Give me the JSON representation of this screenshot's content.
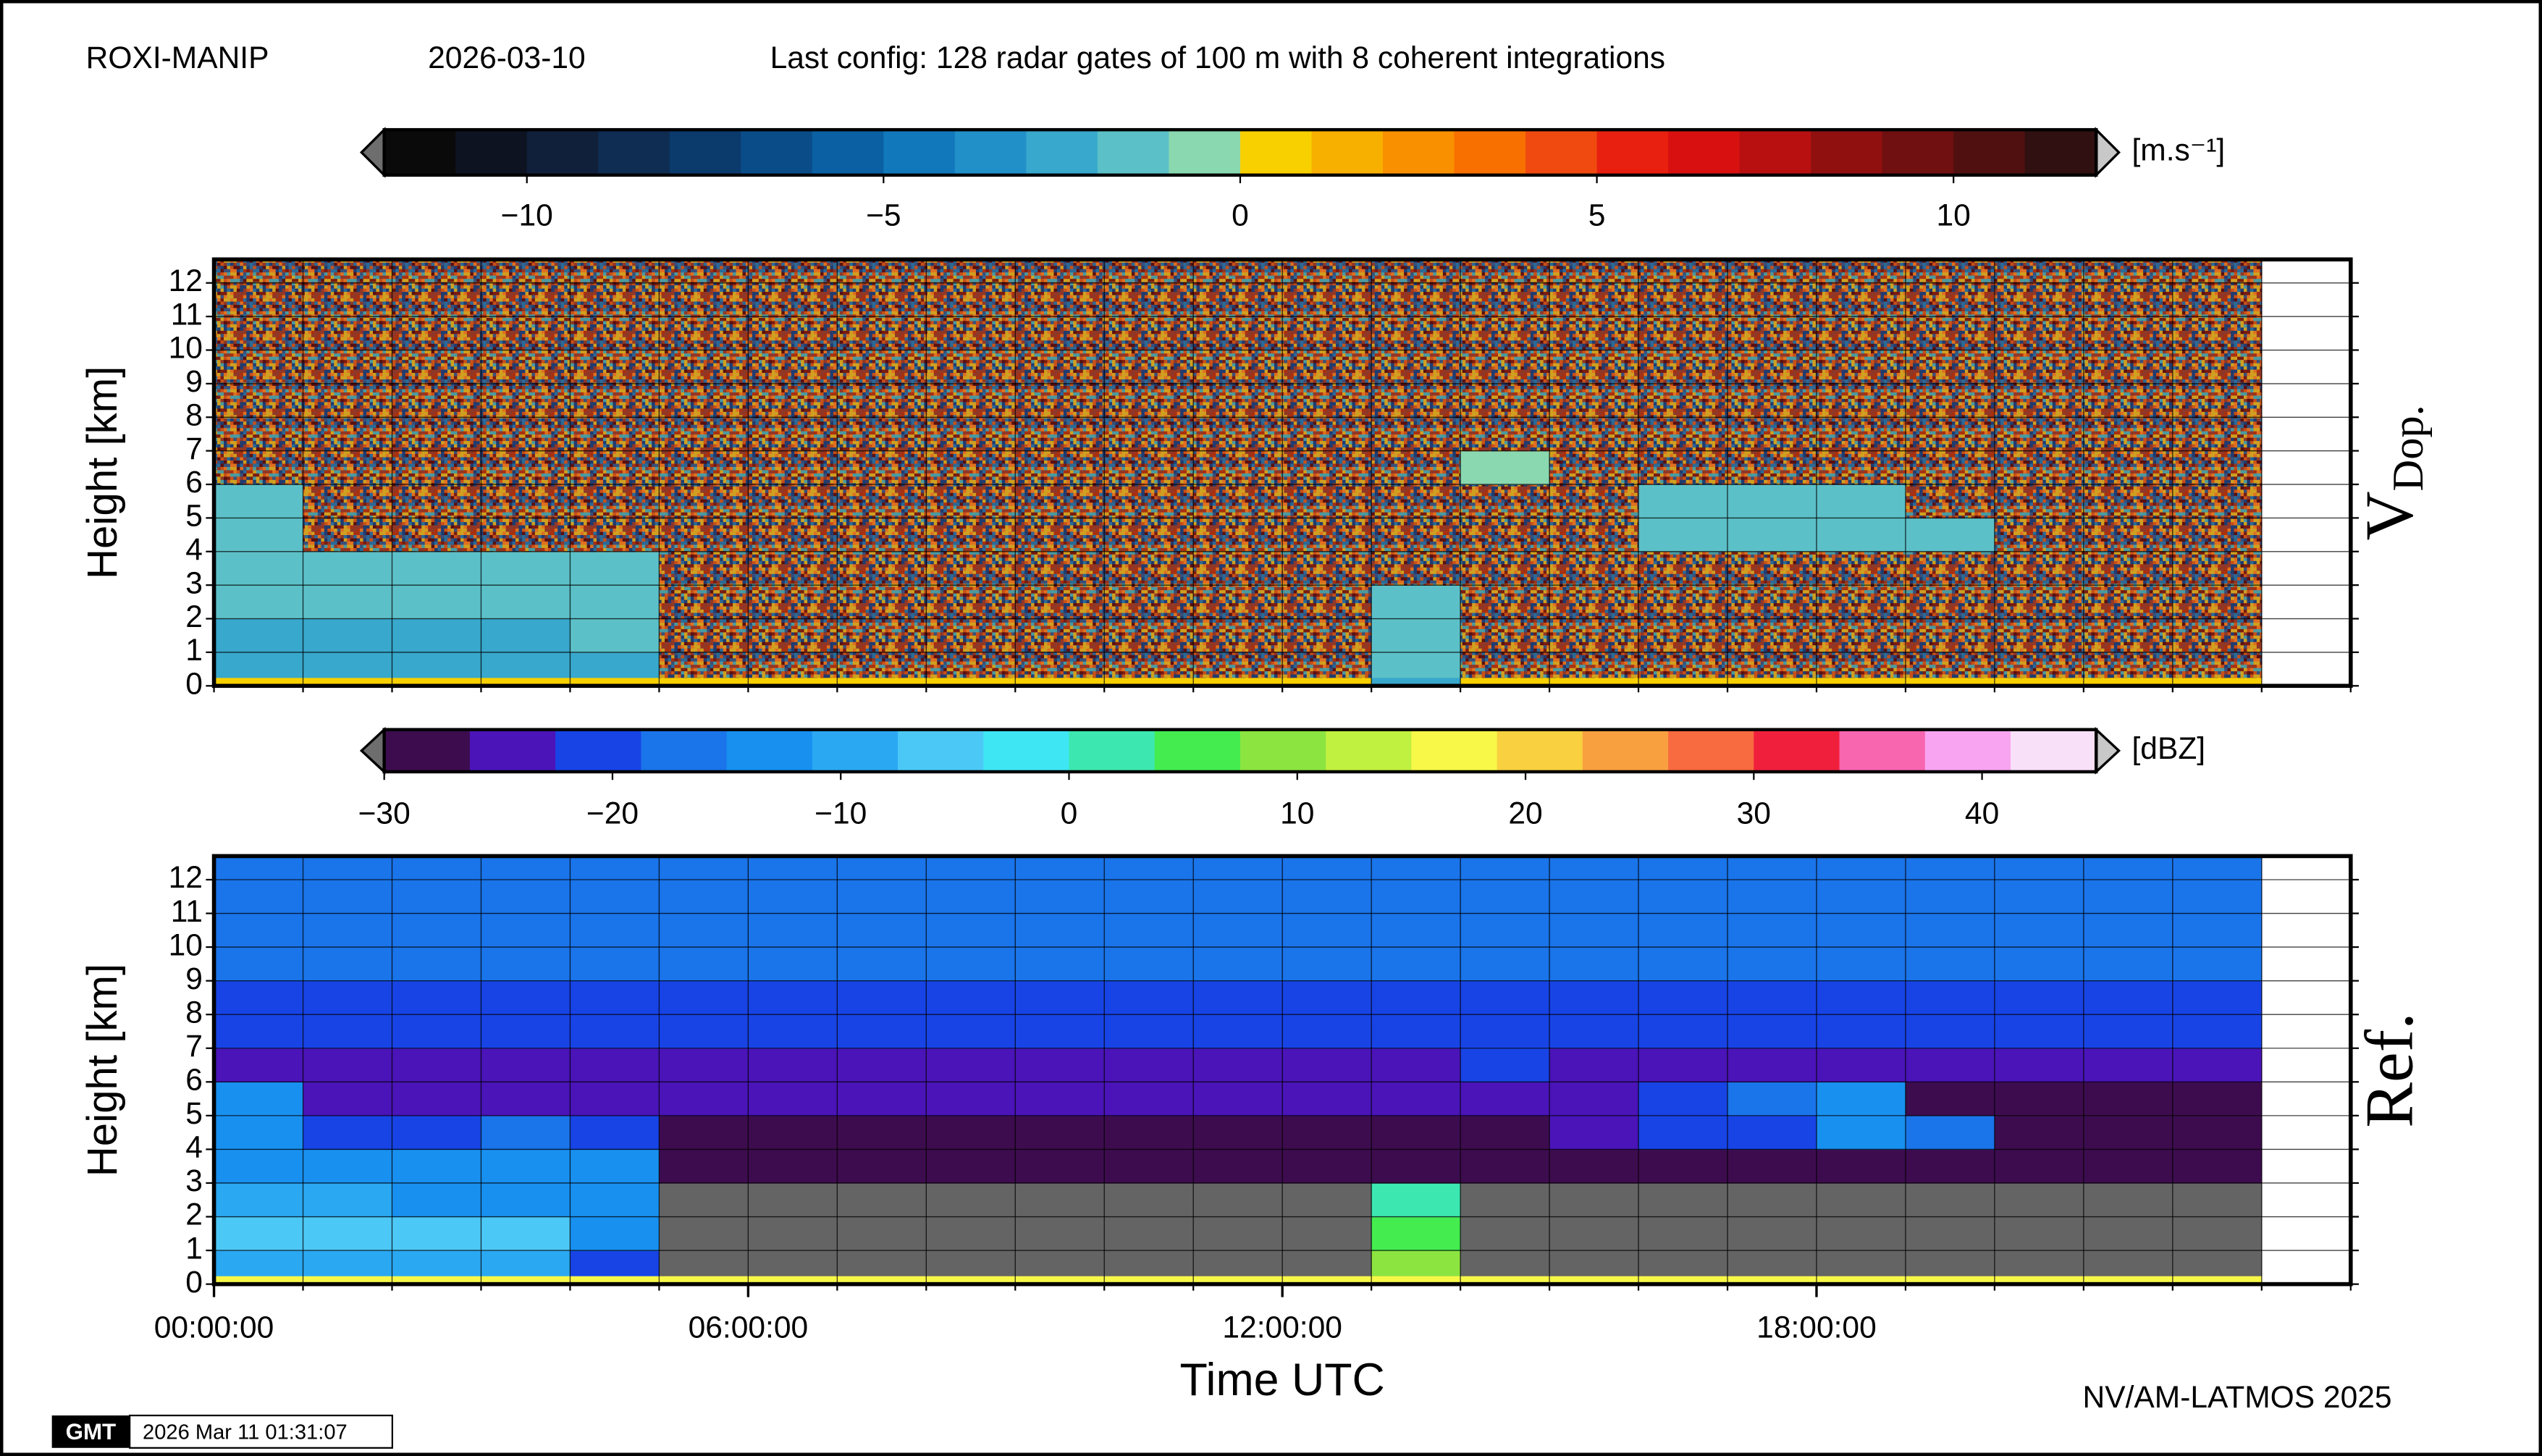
{
  "header": {
    "station": "ROXI-MANIP",
    "date": "2026-03-10",
    "config": "Last config: 128 radar gates of 100 m with 8 coherent integrations"
  },
  "footer": {
    "credit": "NV/AM-LATMOS 2025",
    "logo": "GMT",
    "timestamp": "2026 Mar 11 01:31:07"
  },
  "chart_data": [
    {
      "type": "heatmap",
      "label": "V",
      "label_sub": "Dop.",
      "ylabel": "Height [km]",
      "xlim": [
        0,
        24
      ],
      "ylim": [
        0,
        12.7
      ],
      "yticks": [
        0,
        1,
        2,
        3,
        4,
        5,
        6,
        7,
        8,
        9,
        10,
        11,
        12
      ],
      "xgrid": [
        0,
        1,
        2,
        3,
        4,
        5,
        6,
        7,
        8,
        9,
        10,
        11,
        12,
        13,
        14,
        15,
        16,
        17,
        18,
        19,
        20,
        21,
        22,
        23,
        24
      ],
      "x_edges": [
        0,
        1,
        2,
        3,
        4,
        5,
        6,
        7,
        8,
        9,
        10,
        11,
        12,
        13,
        14,
        15,
        16,
        17,
        18,
        19,
        20,
        21,
        22,
        23
      ],
      "y_edges": [
        0,
        0.25,
        1,
        2,
        3,
        4,
        5,
        6,
        7,
        8,
        9,
        10,
        11,
        12,
        12.7
      ],
      "null_fill": "noise",
      "z": [
        [
          0.5,
          0.5,
          0.5,
          0.5,
          0.5,
          0.5,
          0.5,
          0.5,
          0.5,
          0.5,
          0.5,
          0.5,
          0.5,
          -3,
          0.5,
          0.5,
          0.5,
          0.5,
          0.5,
          0.5,
          0.5,
          0.5,
          0.5
        ],
        [
          -3,
          -3,
          -3,
          -3,
          -3,
          null,
          null,
          null,
          null,
          null,
          null,
          null,
          null,
          -2,
          null,
          null,
          null,
          null,
          null,
          null,
          null,
          null,
          null
        ],
        [
          -2.5,
          -2.5,
          -2.5,
          -2.5,
          -2,
          null,
          null,
          null,
          null,
          null,
          null,
          null,
          null,
          -2,
          null,
          null,
          null,
          null,
          null,
          null,
          null,
          null,
          null
        ],
        [
          -1.5,
          -1.5,
          -1.5,
          -1.5,
          -1.5,
          null,
          null,
          null,
          null,
          null,
          null,
          null,
          null,
          -2,
          null,
          null,
          null,
          null,
          null,
          null,
          null,
          null,
          null
        ],
        [
          -1.5,
          -1.5,
          -1.5,
          -1.5,
          -1.5,
          null,
          null,
          null,
          null,
          null,
          null,
          null,
          null,
          null,
          null,
          null,
          null,
          null,
          null,
          null,
          null,
          null,
          null
        ],
        [
          -1.5,
          null,
          null,
          null,
          null,
          null,
          null,
          null,
          null,
          null,
          null,
          null,
          null,
          null,
          null,
          null,
          -1.5,
          -1.5,
          -1.5,
          -1.5,
          null,
          null,
          null
        ],
        [
          -1.5,
          null,
          null,
          null,
          null,
          null,
          null,
          null,
          null,
          null,
          null,
          null,
          null,
          null,
          null,
          null,
          -1.5,
          -1.5,
          -1.5,
          null,
          null,
          null,
          null
        ],
        [
          null,
          null,
          null,
          null,
          null,
          null,
          null,
          null,
          null,
          null,
          null,
          null,
          null,
          null,
          -1,
          null,
          null,
          null,
          null,
          null,
          null,
          null,
          null
        ],
        [
          null,
          null,
          null,
          null,
          null,
          null,
          null,
          null,
          null,
          null,
          null,
          null,
          null,
          null,
          null,
          null,
          null,
          null,
          null,
          null,
          null,
          null,
          null
        ],
        [
          null,
          null,
          null,
          null,
          null,
          null,
          null,
          null,
          null,
          null,
          null,
          null,
          null,
          null,
          null,
          null,
          null,
          null,
          null,
          null,
          null,
          null,
          null
        ],
        [
          null,
          null,
          null,
          null,
          null,
          null,
          null,
          null,
          null,
          null,
          null,
          null,
          null,
          null,
          null,
          null,
          null,
          null,
          null,
          null,
          null,
          null,
          null
        ],
        [
          null,
          null,
          null,
          null,
          null,
          null,
          null,
          null,
          null,
          null,
          null,
          null,
          null,
          null,
          null,
          null,
          null,
          null,
          null,
          null,
          null,
          null,
          null
        ],
        [
          null,
          null,
          null,
          null,
          null,
          null,
          null,
          null,
          null,
          null,
          null,
          null,
          null,
          null,
          null,
          null,
          null,
          null,
          null,
          null,
          null,
          null,
          null
        ],
        [
          null,
          null,
          null,
          null,
          null,
          null,
          null,
          null,
          null,
          null,
          null,
          null,
          null,
          null,
          null,
          null,
          null,
          null,
          null,
          null,
          null,
          null,
          null
        ]
      ],
      "colorbar": {
        "range": [
          -12,
          12
        ],
        "unit": "[m.s⁻¹]",
        "under_color": "#6e6e6e",
        "over_color": "#c8c8c8",
        "ticks": [
          {
            "value": -10,
            "label": "−10"
          },
          {
            "value": -5,
            "label": "−5"
          },
          0,
          5,
          10
        ],
        "colors": [
          "#0a0a0a",
          "#0e1322",
          "#10203a",
          "#0f2c52",
          "#0b3a6c",
          "#0a4c88",
          "#0a60a2",
          "#1278bc",
          "#2290c8",
          "#38a8cc",
          "#5cc0c8",
          "#8ad8b0",
          "#f8d000",
          "#f8b000",
          "#f89000",
          "#f87000",
          "#f04a10",
          "#e82010",
          "#d81010",
          "#b81010",
          "#901010",
          "#701010",
          "#501010",
          "#301010"
        ]
      }
    },
    {
      "type": "heatmap",
      "label": "Ref.",
      "ylabel": "Height [km]",
      "xlabel": "Time UTC",
      "xlim": [
        0,
        24
      ],
      "ylim": [
        0,
        12.7
      ],
      "yticks": [
        0,
        1,
        2,
        3,
        4,
        5,
        6,
        7,
        8,
        9,
        10,
        11,
        12
      ],
      "xticks": [
        {
          "value": 0,
          "label": "00:00:00"
        },
        {
          "value": 6,
          "label": "06:00:00"
        },
        {
          "value": 12,
          "label": "12:00:00"
        },
        {
          "value": 18,
          "label": "18:00:00"
        }
      ],
      "xgrid": [
        0,
        1,
        2,
        3,
        4,
        5,
        6,
        7,
        8,
        9,
        10,
        11,
        12,
        13,
        14,
        15,
        16,
        17,
        18,
        19,
        20,
        21,
        22,
        23,
        24
      ],
      "x_edges": [
        0,
        1,
        2,
        3,
        4,
        5,
        6,
        7,
        8,
        9,
        10,
        11,
        12,
        13,
        14,
        15,
        16,
        17,
        18,
        19,
        20,
        21,
        22,
        23
      ],
      "y_edges": [
        0,
        0.25,
        1,
        2,
        3,
        4,
        5,
        6,
        7,
        8,
        9,
        10,
        11,
        12,
        12.7
      ],
      "null_fill": "#646464",
      "z": [
        [
          18,
          18,
          18,
          18,
          18,
          18,
          18,
          18,
          18,
          18,
          18,
          18,
          18,
          18,
          18,
          18,
          18,
          18,
          18,
          18,
          18,
          18,
          18
        ],
        [
          -10,
          -10,
          -10,
          -10,
          -20,
          null,
          null,
          null,
          null,
          null,
          null,
          null,
          null,
          10,
          null,
          null,
          null,
          null,
          null,
          null,
          null,
          null,
          null
        ],
        [
          -5,
          -5,
          -5,
          -5,
          -15,
          null,
          null,
          null,
          null,
          null,
          null,
          null,
          null,
          5,
          null,
          null,
          null,
          null,
          null,
          null,
          null,
          null,
          null
        ],
        [
          -10,
          -10,
          -12,
          -12,
          -12,
          null,
          null,
          null,
          null,
          null,
          null,
          null,
          null,
          0,
          null,
          null,
          null,
          null,
          null,
          null,
          null,
          null,
          null
        ],
        [
          -12,
          -15,
          -15,
          -12,
          -12,
          -27,
          -27,
          -27,
          -27,
          -27,
          -27,
          -27,
          -27,
          -27,
          -27,
          -27,
          -27,
          -27,
          -27,
          -27,
          -27,
          -27,
          -27
        ],
        [
          -12,
          -22,
          -20,
          -18,
          -20,
          -27,
          -27,
          -27,
          -27,
          -27,
          -27,
          -27,
          -27,
          -27,
          -27,
          -24,
          -20,
          -20,
          -15,
          -18,
          -27,
          -27,
          -27
        ],
        [
          -15,
          -25,
          -25,
          -25,
          -25,
          -25,
          -25,
          -25,
          -25,
          -25,
          -25,
          -25,
          -25,
          -25,
          -25,
          -25,
          -20,
          -18,
          -15,
          -27,
          -27,
          -27,
          -27
        ],
        [
          -25,
          -25,
          -25,
          -25,
          -25,
          -25,
          -25,
          -25,
          -25,
          -25,
          -25,
          -25,
          -25,
          -25,
          -22,
          -25,
          -25,
          -25,
          -25,
          -25,
          -25,
          -25,
          -25
        ],
        [
          -22,
          -22,
          -22,
          -22,
          -22,
          -22,
          -22,
          -22,
          -22,
          -22,
          -22,
          -22,
          -22,
          -22,
          -22,
          -22,
          -22,
          -22,
          -22,
          -22,
          -22,
          -22,
          -22
        ],
        [
          -20,
          -20,
          -20,
          -20,
          -20,
          -20,
          -20,
          -20,
          -20,
          -20,
          -20,
          -20,
          -20,
          -20,
          -20,
          -20,
          -20,
          -20,
          -20,
          -20,
          -20,
          -20,
          -20
        ],
        [
          -18,
          -18,
          -18,
          -18,
          -18,
          -18,
          -18,
          -18,
          -18,
          -18,
          -18,
          -18,
          -18,
          -18,
          -18,
          -18,
          -18,
          -18,
          -18,
          -18,
          -18,
          -18,
          -18
        ],
        [
          -18,
          -18,
          -18,
          -18,
          -18,
          -18,
          -18,
          -18,
          -18,
          -18,
          -18,
          -18,
          -18,
          -18,
          -18,
          -18,
          -18,
          -18,
          -18,
          -18,
          -18,
          -18,
          -18
        ],
        [
          -18,
          -18,
          -18,
          -18,
          -18,
          -18,
          -18,
          -18,
          -18,
          -18,
          -18,
          -18,
          -18,
          -18,
          -18,
          -18,
          -18,
          -18,
          -18,
          -18,
          -18,
          -18,
          -18
        ],
        [
          -18,
          -18,
          -18,
          -18,
          -18,
          -18,
          -18,
          -18,
          -18,
          -18,
          -18,
          -18,
          -18,
          -18,
          -18,
          -18,
          -18,
          -18,
          -18,
          -18,
          -18,
          -18,
          -18
        ]
      ],
      "colorbar": {
        "range": [
          -30,
          45
        ],
        "unit": "[dBZ]",
        "under_color": "#6e6e6e",
        "over_color": "#c8c8c8",
        "ticks": [
          {
            "value": -30,
            "label": "−30"
          },
          {
            "value": -20,
            "label": "−20"
          },
          {
            "value": -10,
            "label": "−10"
          },
          0,
          10,
          20,
          30,
          40
        ],
        "colors": [
          "#3d0c4e",
          "#4a14b8",
          "#1844e6",
          "#1a74ea",
          "#1890f0",
          "#2aa8f2",
          "#4cc8f6",
          "#3ee6f4",
          "#3ce8b0",
          "#44ec50",
          "#8ce440",
          "#c0f040",
          "#f8f848",
          "#f8d040",
          "#f8a040",
          "#f86a40",
          "#f0203c",
          "#f866b0",
          "#f8a4f0",
          "#f8e0f8"
        ]
      }
    }
  ]
}
